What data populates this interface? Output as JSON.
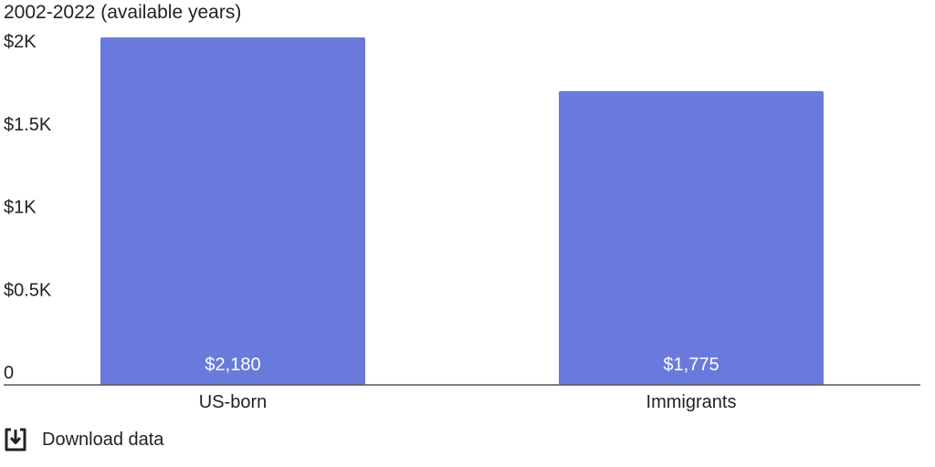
{
  "subtitle": "2002-2022 (available years)",
  "download": {
    "label": "Download data",
    "icon": "download-icon"
  },
  "colors": {
    "bar": "#6a7adc",
    "axis": "#555555",
    "text": "#222222",
    "data_label": "#ffffff"
  },
  "chart_data": {
    "type": "bar",
    "categories": [
      "US-born",
      "Immigrants"
    ],
    "values": [
      2180,
      1775
    ],
    "value_labels": [
      "$2,180",
      "$1,775"
    ],
    "ylim": [
      0,
      2000
    ],
    "yticks": [
      0,
      500,
      1000,
      1500,
      2000
    ],
    "ytick_labels": [
      "0",
      "$0.5K",
      "$1K",
      "$1.5K",
      "$2K"
    ],
    "grid": false,
    "legend": "none"
  }
}
